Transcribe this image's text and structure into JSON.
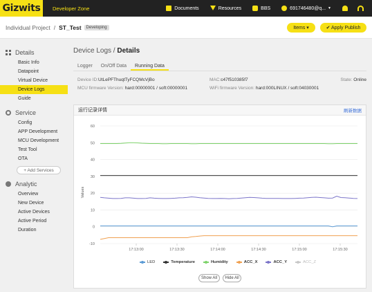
{
  "topbar": {
    "logo": "Gizwits",
    "zone": "Developer Zone",
    "links": [
      {
        "label": "Documents",
        "icon": "document-icon"
      },
      {
        "label": "Resources",
        "icon": "download-icon"
      },
      {
        "label": "BBS",
        "icon": "chat-icon"
      }
    ],
    "user": "691746480@q...",
    "caret": "▼"
  },
  "breadcrumb": {
    "parent": "Individual Project",
    "separator": "/",
    "current": "ST_Test",
    "badge": "Developing"
  },
  "actions": {
    "items": "Items ▾",
    "publish": "✔ Apply Publish"
  },
  "sidebar": {
    "details_title": "Details",
    "details_items": [
      "Basic Info",
      "Datapoint",
      "Virtual Device",
      "Device Logs",
      "Guide"
    ],
    "service_title": "Service",
    "service_items": [
      "Config",
      "APP Development",
      "MCU Development",
      "Test Tool",
      "OTA"
    ],
    "add_services": "+ Add Services",
    "analytic_title": "Analytic",
    "analytic_items": [
      "Overview",
      "New Device",
      "Active Devices",
      "Active Period",
      "Duration"
    ]
  },
  "main": {
    "title_parent": "Device Logs",
    "title_sep": " / ",
    "title_current": "Details",
    "tabs": [
      "Logger",
      "On/Off Data",
      "Running Data"
    ],
    "info": {
      "device_id_label": "Device ID:",
      "device_id": "UtLePFThuqtTyFCQMcVjBo",
      "mac_label": "MAC:",
      "mac": "c47f510385f7",
      "state_label": "State:",
      "state": "Online",
      "mcu_label": "MCU firmware Version:",
      "mcu": "hard:00000001 / soft:00000001",
      "wifi_label": "WiFi firmware Version:",
      "wifi": "hard:000LINUX / soft:04030001"
    }
  },
  "card": {
    "title": "运行记录详情",
    "refresh": "刷新数据",
    "show_all": "Show All",
    "hide_all": "Hide All"
  },
  "chart_data": {
    "type": "line",
    "ylabel": "Values",
    "xlabel": "",
    "ylim": [
      -10,
      60
    ],
    "yticks": [
      60,
      50,
      40,
      30,
      20,
      10,
      0,
      -10
    ],
    "xtick_labels": [
      "17:13:00",
      "17:13:30",
      "17:14:00",
      "17:14:30",
      "17:15:00",
      "17:15:30"
    ],
    "grid": "horizontal",
    "legend": "bottom",
    "series": [
      {
        "name": "LED",
        "color": "#5b9bd5",
        "visible": true,
        "values": [
          0.5,
          0.5,
          0.5,
          0.5,
          0.5,
          0.5,
          0.5,
          0.5,
          0.5,
          0.5,
          0.5,
          0.5,
          0.5,
          0.5,
          0.5,
          0.5,
          0.5,
          0.5,
          0.5,
          0.5,
          0.5,
          0.5,
          0.5,
          0.5,
          0.5,
          0.5,
          0.5,
          0.5,
          0.5,
          0.5,
          0.5,
          0.5,
          0.5,
          0.5,
          0.5,
          0.5,
          0.5,
          0.5,
          0.5,
          0.5,
          0.5,
          0.5,
          0.5,
          0.5,
          0.5,
          0.5,
          0.5,
          0.5,
          0.5,
          0.5,
          0.5,
          0.5,
          0.5,
          0.5,
          0.5,
          0.5,
          0,
          0.5,
          0.5,
          0.5,
          0.5,
          0.5,
          0.5
        ]
      },
      {
        "name": "Temperature",
        "color": "#333333",
        "visible": true,
        "values": [
          30.5,
          30.5,
          30.5,
          30.5,
          30.5,
          30.5,
          30.5,
          30.5,
          30.5,
          30.5,
          30.5,
          30.5,
          30.5,
          30.5,
          30.5,
          30.5,
          30.5,
          30.5,
          30.5,
          30.5,
          30.5,
          30.5,
          30.5,
          30.5,
          30.5,
          30.5,
          30.5,
          30.5,
          30.5,
          30.5,
          30.5,
          30.5,
          30.5,
          30.5,
          30.5,
          30.5,
          30.5,
          30.5,
          30.5,
          30.5,
          30.5,
          30.5,
          30.5,
          30.5,
          30.5,
          30.5,
          30.5,
          30.5,
          30.5,
          30.5,
          30.5,
          30.5,
          30.5,
          30.5,
          30.5,
          30.5,
          30.5,
          30.5,
          30.5,
          30.5,
          30.5,
          30.5,
          30.5
        ]
      },
      {
        "name": "Humidity",
        "color": "#7ed36b",
        "visible": true,
        "values": [
          49.5,
          49.5,
          49.5,
          49.5,
          49.5,
          49.6,
          49.8,
          50,
          50,
          49.9,
          49.7,
          49.6,
          49.5,
          49.5,
          49.5,
          49.4,
          49.4,
          49.5,
          49.5,
          49.5,
          49.5,
          49.5,
          49.4,
          49.4,
          49.5,
          49.5,
          49.5,
          49.5,
          49.5,
          49.5,
          49.5,
          49.5,
          49.5,
          49.5,
          49.5,
          49.5,
          49.5,
          49.5,
          49.5,
          49.5,
          49.5,
          49.5,
          49.5,
          49.5,
          49.5,
          49.5,
          49.5,
          49.5,
          49.5,
          49.5,
          49.5,
          49.5,
          49.5,
          49.5,
          49.5,
          49.4,
          49.4,
          49.5,
          49.5,
          49.5,
          49.5,
          49.5,
          49.5
        ]
      },
      {
        "name": "ACC_X",
        "color": "#f0a050",
        "visible": true,
        "values": [
          -7.5,
          -7,
          -6.5,
          -6.5,
          -6.5,
          -6.5,
          -6.5,
          -6.5,
          -6.5,
          -6.5,
          -6.5,
          -6.5,
          -6.5,
          -6.5,
          -6.5,
          -6.5,
          -6.5,
          -6.5,
          -6.5,
          -6.5,
          -6.5,
          -6.5,
          -6,
          -5.8,
          -5.5,
          -5.3,
          -5.3,
          -5.3,
          -5.3,
          -5.3,
          -5.3,
          -5.3,
          -5.3,
          -5.3,
          -5.3,
          -5.3,
          -5.3,
          -5.3,
          -5.3,
          -5.3,
          -5.3,
          -5.3,
          -5.3,
          -5.3,
          -5.3,
          -5.3,
          -5.3,
          -5.3,
          -5.3,
          -5.3,
          -5.3,
          -5.3,
          -5.3,
          -5.3,
          -5.3,
          -5.3,
          -5.3,
          -5.3,
          -5.3,
          -5.3,
          -5.3,
          -5.3,
          -5.3
        ]
      },
      {
        "name": "ACC_Y",
        "color": "#7b74c9",
        "visible": true,
        "values": [
          17.5,
          17.2,
          17,
          16.8,
          16.8,
          16.9,
          17.2,
          17.2,
          17,
          16.8,
          16.8,
          16.9,
          17.2,
          17,
          16.9,
          16.8,
          16.8,
          16.9,
          17,
          17.2,
          17.3,
          17.5,
          17.8,
          17.6,
          17.3,
          17.1,
          16.9,
          16.8,
          16.8,
          16.9,
          16.8,
          16.7,
          16.8,
          16.9,
          17.1,
          17.3,
          17.5,
          17.4,
          17.2,
          17,
          16.9,
          16.9,
          16.9,
          16.9,
          16.8,
          16.8,
          16.8,
          16.9,
          17,
          17.1,
          17.3,
          17.5,
          17.6,
          17.4,
          17.2,
          17,
          17.1,
          18.2,
          17.4,
          17.3,
          17.1,
          16.9,
          16.8
        ]
      },
      {
        "name": "ACC_Z",
        "color": "#c8c8c8",
        "visible": false,
        "values": []
      }
    ]
  }
}
